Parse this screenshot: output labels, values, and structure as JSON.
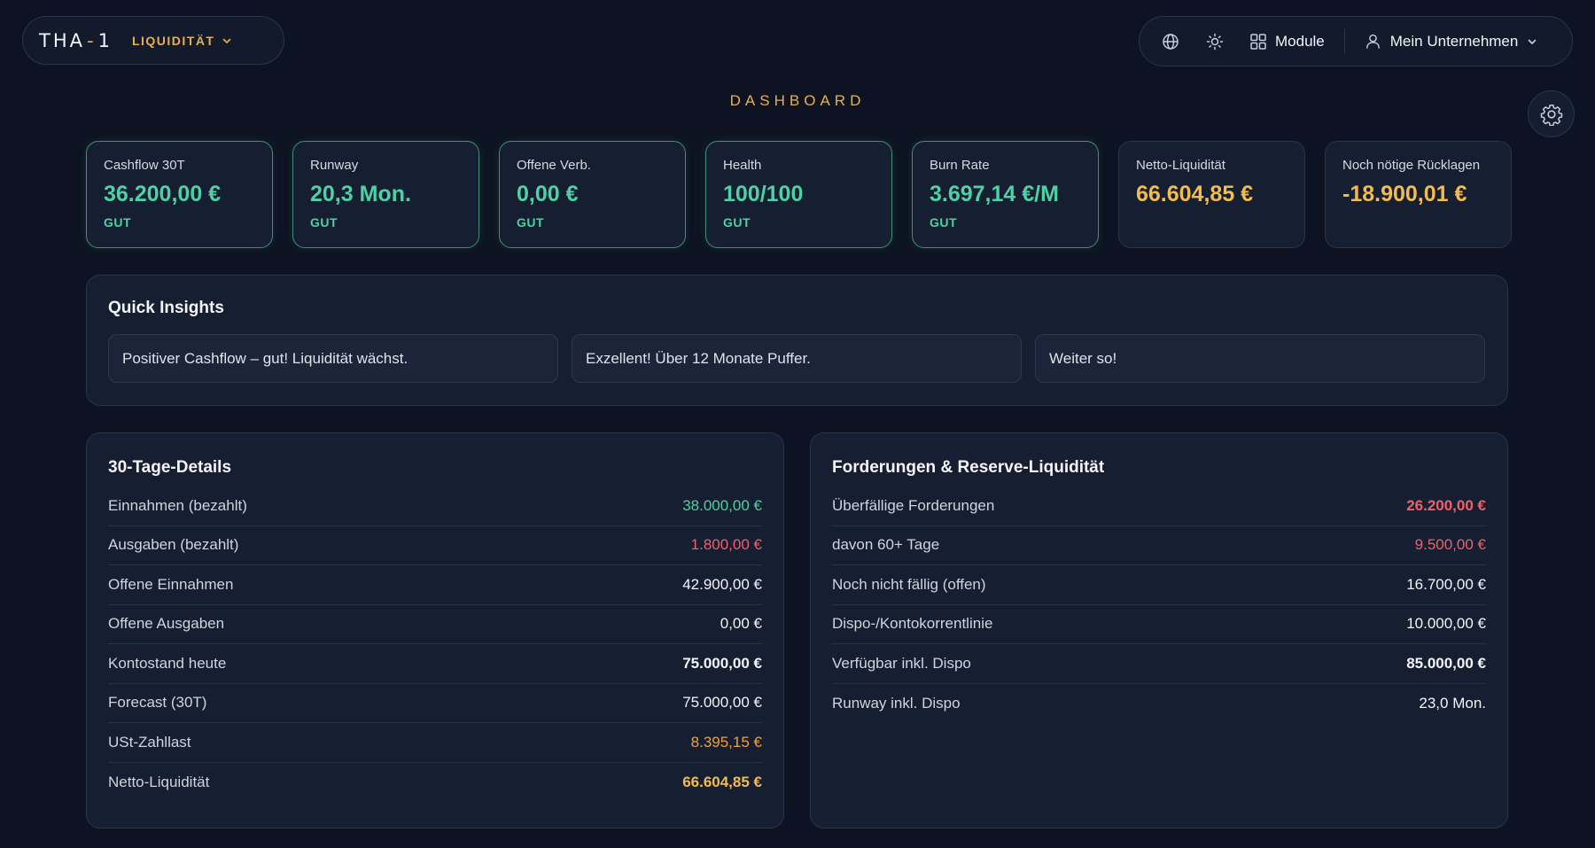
{
  "brand": {
    "logo_left": "THA",
    "logo_dash": "-",
    "logo_right": "1",
    "module": "LIQUIDITÄT"
  },
  "header": {
    "modules_label": "Module",
    "company_label": "Mein Unternehmen",
    "icons": [
      "globe-icon",
      "sun-icon",
      "grid-icon",
      "user-icon",
      "chevron-down-icon",
      "gear-icon"
    ]
  },
  "page_title": "DASHBOARD",
  "kpis": [
    {
      "label": "Cashflow 30T",
      "value": "36.200,00 €",
      "status": "GUT"
    },
    {
      "label": "Runway",
      "value": "20,3 Mon.",
      "status": "GUT"
    },
    {
      "label": "Offene Verb.",
      "value": "0,00 €",
      "status": "GUT"
    },
    {
      "label": "Health",
      "value": "100/100",
      "status": "GUT"
    },
    {
      "label": "Burn Rate",
      "value": "3.697,14 €/M",
      "status": "GUT"
    },
    {
      "label": "Netto-Liquidität",
      "value": "66.604,85 €"
    },
    {
      "label": "Noch nötige Rücklagen",
      "value": "-18.900,01 €"
    }
  ],
  "insights": {
    "title": "Quick Insights",
    "items": [
      "Positiver Cashflow – gut! Liquidität wächst.",
      "Exzellent! Über 12 Monate Puffer.",
      "Weiter so!"
    ]
  },
  "details": {
    "title": "30-Tage-Details",
    "rows": [
      {
        "label": "Einnahmen (bezahlt)",
        "value": "38.000,00 €"
      },
      {
        "label": "Ausgaben (bezahlt)",
        "value": "1.800,00 €"
      },
      {
        "label": "Offene Einnahmen",
        "value": "42.900,00 €"
      },
      {
        "label": "Offene Ausgaben",
        "value": "0,00 €"
      },
      {
        "label": "Kontostand heute",
        "value": "75.000,00 €"
      },
      {
        "label": "Forecast (30T)",
        "value": "75.000,00 €"
      },
      {
        "label": "USt-Zahllast",
        "value": "8.395,15 €"
      },
      {
        "label": "Netto-Liquidität",
        "value": "66.604,85 €"
      }
    ]
  },
  "receivables": {
    "title": "Forderungen & Reserve-Liquidität",
    "rows": [
      {
        "label": "Überfällige Forderungen",
        "value": "26.200,00 €"
      },
      {
        "label": "davon 60+ Tage",
        "value": "9.500,00 €"
      },
      {
        "label": "Noch nicht fällig (offen)",
        "value": "16.700,00 €"
      },
      {
        "label": "Dispo-/Kontokorrentlinie",
        "value": "10.000,00 €"
      },
      {
        "label": "Verfügbar inkl. Dispo",
        "value": "85.000,00 €"
      },
      {
        "label": "Runway inkl. Dispo",
        "value": "23,0 Mon."
      }
    ]
  },
  "colors": {
    "background": "#0d1322",
    "accent": "#e8b04a",
    "good": "#4fd1a5",
    "negative": "#f0606a",
    "warning": "#f0a040"
  }
}
